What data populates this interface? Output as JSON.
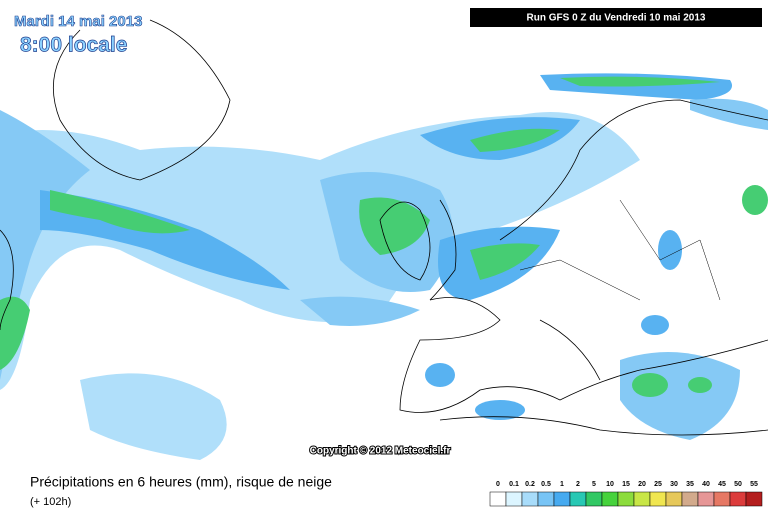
{
  "header": {
    "date": "Mardi 14 mai 2013",
    "time": "8:00 locale",
    "run": "Run GFS 0 Z du Vendredi 10 mai 2013"
  },
  "copyright": "Copyright © 2012 Meteociel.fr",
  "footer": {
    "title": "Précipitations en 6 heures (mm), risque de neige",
    "subtitle": "(+ 102h)"
  },
  "legend": {
    "labels": [
      "0",
      "0.1",
      "0.2",
      "0.5",
      "1",
      "2",
      "5",
      "10",
      "15",
      "20",
      "25",
      "30",
      "35",
      "40",
      "45",
      "50",
      "55"
    ],
    "colors": [
      "#ffffff",
      "#dcf5ff",
      "#a8dcfa",
      "#78c4f5",
      "#46aaf0",
      "#28c8b4",
      "#32c864",
      "#46d23c",
      "#8cdc3c",
      "#c8e646",
      "#f0e650",
      "#e6c85a",
      "#d2aa8c",
      "#e69696",
      "#e67864",
      "#dc3c3c",
      "#b41e1e"
    ]
  }
}
